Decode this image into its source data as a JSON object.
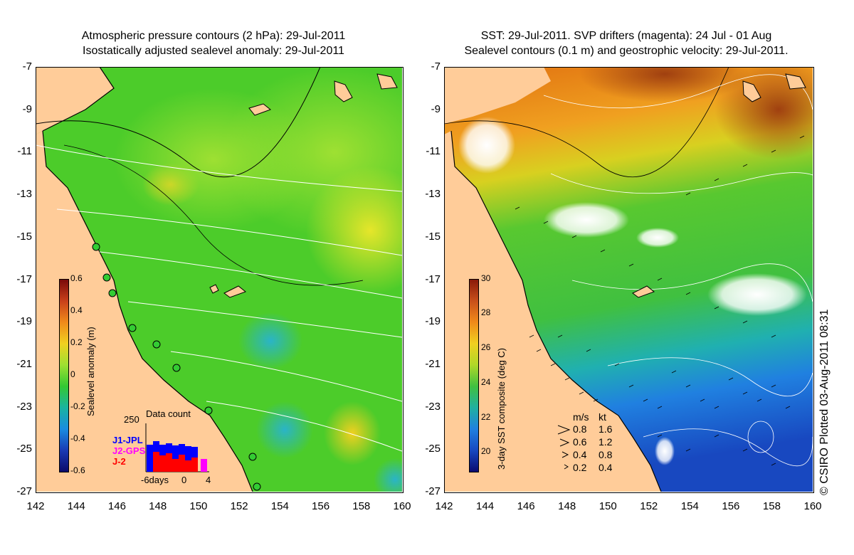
{
  "left_panel": {
    "title_line1": "Atmospheric pressure contours (2 hPa): 29-Jul-2011",
    "title_line2": "Isostatically adjusted sealevel anomaly: 29-Jul-2011",
    "colorbar": {
      "title": "Sealevel anomaly (m)",
      "ticks": [
        "0.6",
        "0.4",
        "0.2",
        "0",
        "-0.2",
        "-0.4",
        "-0.6"
      ],
      "min": -0.6,
      "max": 0.6
    },
    "data_count": {
      "title": "Data count",
      "ymax_label": "250",
      "series": [
        {
          "name": "J1-JPL",
          "color": "#0000ff"
        },
        {
          "name": "J2-GPS",
          "color": "#ff00ff"
        },
        {
          "name": "J-2",
          "color": "#ff0000"
        }
      ],
      "x_labels": [
        "-6days",
        "0",
        "4"
      ]
    }
  },
  "right_panel": {
    "title_line1": "SST: 29-Jul-2011. SVP drifters (magenta): 24 Jul - 01 Aug",
    "title_line2": "Sealevel contours (0.1 m) and geostrophic velocity: 29-Jul-2011.",
    "colorbar": {
      "title": "3-day SST composite (deg C)",
      "ticks": [
        "30",
        "28",
        "26",
        "24",
        "22",
        "20"
      ],
      "min": 19,
      "max": 30
    },
    "velocity_legend": {
      "header_ms": "m/s",
      "header_kt": "kt",
      "rows": [
        {
          "ms": "0.8",
          "kt": "1.6"
        },
        {
          "ms": "0.6",
          "kt": "1.2"
        },
        {
          "ms": "0.4",
          "kt": "0.8"
        },
        {
          "ms": "0.2",
          "kt": "0.4"
        }
      ]
    },
    "copyright": "© CSIRO Plotted 03-Aug-2011 08:31"
  },
  "axes": {
    "x_ticks": [
      "142",
      "144",
      "146",
      "148",
      "150",
      "152",
      "154",
      "156",
      "158",
      "160"
    ],
    "y_ticks": [
      "-7",
      "-9",
      "-11",
      "-13",
      "-15",
      "-17",
      "-19",
      "-21",
      "-23",
      "-25",
      "-27"
    ]
  },
  "colors": {
    "land": "#ffcc99",
    "coast": "#000000",
    "sla_base": "#4ccc2a",
    "sst_warm": "#e0801a",
    "sst_cool": "#1c62d8"
  }
}
